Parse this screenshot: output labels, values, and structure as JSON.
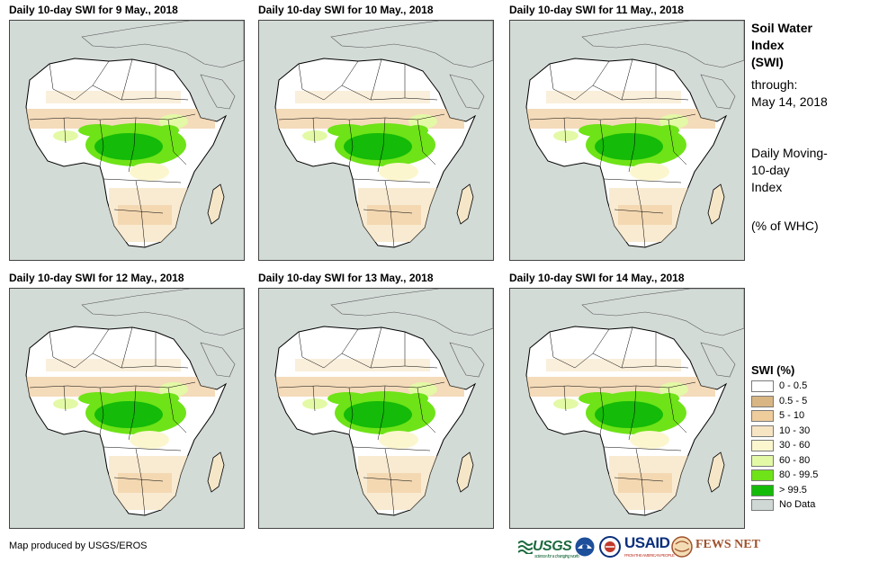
{
  "panels": [
    {
      "title": "Daily 10-day  SWI for 9 May., 2018"
    },
    {
      "title": "Daily 10-day  SWI for 10 May., 2018"
    },
    {
      "title": "Daily 10-day  SWI for 11 May., 2018"
    },
    {
      "title": "Daily 10-day  SWI for 12 May., 2018"
    },
    {
      "title": "Daily 10-day  SWI for 13 May., 2018"
    },
    {
      "title": "Daily 10-day  SWI for 14 May., 2018"
    }
  ],
  "side": {
    "title_line1": "Soil Water",
    "title_line2": "Index",
    "title_line3": "(SWI)",
    "through_label": "through:",
    "through_date": "May 14, 2018",
    "desc_line1": "Daily Moving-",
    "desc_line2": "10-day",
    "desc_line3": "Index",
    "unit_note": "(% of WHC)"
  },
  "legend": {
    "title": "SWI (%)",
    "items": [
      {
        "label": "0 - 0.5",
        "color": "#ffffff"
      },
      {
        "label": "0.5 - 5",
        "color": "#d8b582"
      },
      {
        "label": "5 - 10",
        "color": "#efcc9c"
      },
      {
        "label": "10 - 30",
        "color": "#f7e4c3"
      },
      {
        "label": "30 - 60",
        "color": "#fcf6cf"
      },
      {
        "label": "60 - 80",
        "color": "#e3f9a6"
      },
      {
        "label": "80 - 99.5",
        "color": "#6ee317"
      },
      {
        "label": "> 99.5",
        "color": "#14bb08"
      },
      {
        "label": "No Data",
        "color": "#cfd8d4"
      }
    ]
  },
  "credit": "Map produced by USGS/EROS",
  "logos": {
    "usgs": "USGS",
    "usgs_tagline": "science for a changing world",
    "usaid": "USAID",
    "usaid_tagline": "FROM THE AMERICAN PEOPLE",
    "fews": "FEWS NET"
  }
}
